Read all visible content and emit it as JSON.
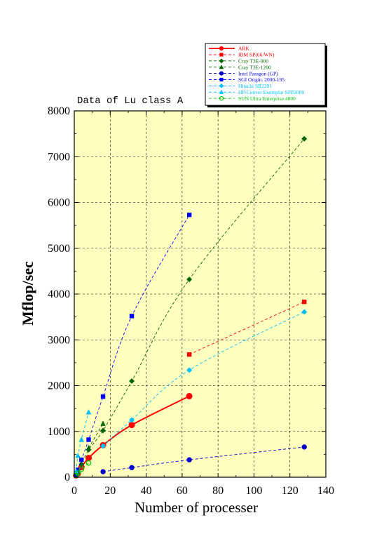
{
  "chart_data": {
    "type": "line",
    "title": "Data of Lu class A",
    "xlabel": "Number of processer",
    "ylabel": "Mflop/sec",
    "xlim": [
      0,
      140
    ],
    "ylim": [
      0,
      8000
    ],
    "xticks": [
      0,
      20,
      40,
      60,
      80,
      100,
      120,
      140
    ],
    "yticks": [
      0,
      1000,
      2000,
      3000,
      4000,
      5000,
      6000,
      7000,
      8000
    ],
    "grid": true,
    "legend_position": "top-right",
    "plot_background": "#ffffc0",
    "series": [
      {
        "name": "ARK",
        "color": "#ff0000",
        "marker": "circle",
        "line": "solid",
        "x": [
          1,
          2,
          4,
          8,
          16,
          32,
          64
        ],
        "y": [
          40,
          80,
          220,
          420,
          700,
          1140,
          1770
        ]
      },
      {
        "name": "IBM SP(66/WN)",
        "color": "#ff0000",
        "marker": "square",
        "line": "dashed",
        "x": [
          64,
          128
        ],
        "y": [
          2680,
          3830
        ]
      },
      {
        "name": "Cray T3E-900",
        "color": "#006400",
        "marker": "diamond",
        "line": "dashed",
        "x": [
          1,
          2,
          4,
          8,
          16,
          32,
          64,
          128
        ],
        "y": [
          50,
          100,
          280,
          600,
          1020,
          2100,
          4320,
          7390
        ]
      },
      {
        "name": "Cray T3E-1200",
        "color": "#006400",
        "marker": "triangle",
        "line": "dashed",
        "x": [
          8,
          16
        ],
        "y": [
          640,
          1170
        ]
      },
      {
        "name": "Intel Paragon (GP)",
        "color": "#0000cc",
        "marker": "circle",
        "line": "dashed",
        "x": [
          16,
          32,
          64,
          128
        ],
        "y": [
          120,
          210,
          380,
          660
        ]
      },
      {
        "name": "SGI Origin. 2000-195",
        "color": "#0000ff",
        "marker": "square",
        "line": "dashed",
        "x": [
          1,
          2,
          4,
          8,
          16,
          32,
          64
        ],
        "y": [
          60,
          160,
          380,
          820,
          1760,
          3520,
          5730
        ]
      },
      {
        "name": "Hitachi SR2201",
        "color": "#00c0ff",
        "marker": "diamond",
        "line": "dashed",
        "x": [
          16,
          32,
          64,
          128
        ],
        "y": [
          680,
          1250,
          2340,
          3610
        ]
      },
      {
        "name": "HP/Conver Exemplar SPP2000",
        "color": "#00c0ff",
        "marker": "triangle",
        "line": "dashed",
        "x": [
          1,
          2,
          4,
          8
        ],
        "y": [
          130,
          470,
          820,
          1420
        ]
      },
      {
        "name": "SUN Ultra Enterprise 4000",
        "color": "#00cc00",
        "marker": "circle-open",
        "line": "dashed",
        "x": [
          1,
          2,
          4,
          8
        ],
        "y": [
          40,
          90,
          170,
          310
        ]
      }
    ]
  }
}
